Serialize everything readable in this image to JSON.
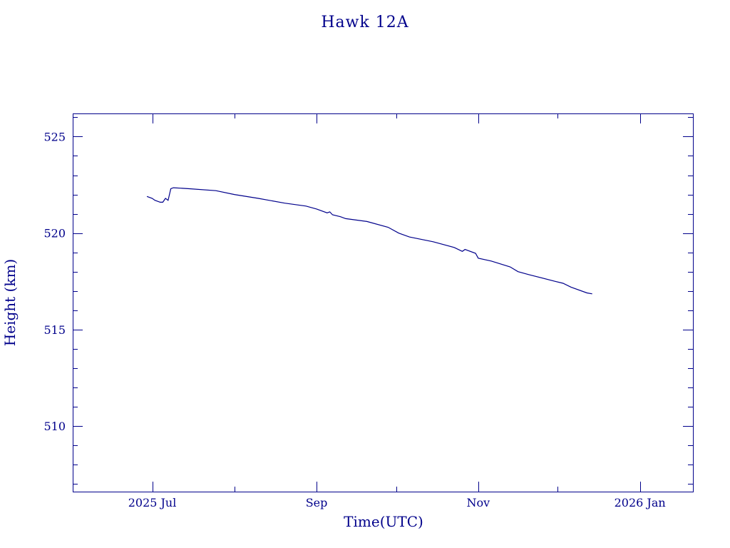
{
  "chart_data": {
    "type": "line",
    "title": "Hawk 12A",
    "xlabel": "Time(UTC)",
    "ylabel": "Height (km)",
    "x_ticks": [
      {
        "x": "2025-07-01",
        "label": "2025 Jul"
      },
      {
        "x": "2025-09-01",
        "label": "Sep"
      },
      {
        "x": "2025-11-01",
        "label": "Nov"
      },
      {
        "x": "2026-01-01",
        "label": "2026 Jan"
      }
    ],
    "y_ticks": [
      {
        "y": 510,
        "label": "510"
      },
      {
        "y": 515,
        "label": "515"
      },
      {
        "y": 520,
        "label": "520"
      },
      {
        "y": 525,
        "label": "525"
      }
    ],
    "xlim": [
      "2025-06-01",
      "2026-01-21"
    ],
    "ylim": [
      506.6,
      526.2
    ],
    "grid": false,
    "series": [
      {
        "color": "#00008b",
        "points": [
          {
            "x": "2025-06-29",
            "y": 521.9
          },
          {
            "x": "2025-07-01",
            "y": 521.8
          },
          {
            "x": "2025-07-02",
            "y": 521.7
          },
          {
            "x": "2025-07-04",
            "y": 521.6
          },
          {
            "x": "2025-07-05",
            "y": 521.6
          },
          {
            "x": "2025-07-06",
            "y": 521.8
          },
          {
            "x": "2025-07-07",
            "y": 521.7
          },
          {
            "x": "2025-07-08",
            "y": 522.3
          },
          {
            "x": "2025-07-09",
            "y": 522.35
          },
          {
            "x": "2025-07-15",
            "y": 522.3
          },
          {
            "x": "2025-07-25",
            "y": 522.2
          },
          {
            "x": "2025-08-01",
            "y": 522.0
          },
          {
            "x": "2025-08-10",
            "y": 521.8
          },
          {
            "x": "2025-08-20",
            "y": 521.55
          },
          {
            "x": "2025-08-28",
            "y": 521.4
          },
          {
            "x": "2025-09-01",
            "y": 521.25
          },
          {
            "x": "2025-09-05",
            "y": 521.05
          },
          {
            "x": "2025-09-06",
            "y": 521.1
          },
          {
            "x": "2025-09-07",
            "y": 520.95
          },
          {
            "x": "2025-09-10",
            "y": 520.85
          },
          {
            "x": "2025-09-12",
            "y": 520.75
          },
          {
            "x": "2025-09-20",
            "y": 520.6
          },
          {
            "x": "2025-09-28",
            "y": 520.3
          },
          {
            "x": "2025-10-02",
            "y": 520.0
          },
          {
            "x": "2025-10-06",
            "y": 519.8
          },
          {
            "x": "2025-10-15",
            "y": 519.55
          },
          {
            "x": "2025-10-23",
            "y": 519.25
          },
          {
            "x": "2025-10-26",
            "y": 519.05
          },
          {
            "x": "2025-10-27",
            "y": 519.15
          },
          {
            "x": "2025-10-31",
            "y": 518.95
          },
          {
            "x": "2025-11-01",
            "y": 518.7
          },
          {
            "x": "2025-11-06",
            "y": 518.55
          },
          {
            "x": "2025-11-13",
            "y": 518.25
          },
          {
            "x": "2025-11-16",
            "y": 518.0
          },
          {
            "x": "2025-11-20",
            "y": 517.85
          },
          {
            "x": "2025-11-30",
            "y": 517.5
          },
          {
            "x": "2025-12-03",
            "y": 517.4
          },
          {
            "x": "2025-12-06",
            "y": 517.2
          },
          {
            "x": "2025-12-12",
            "y": 516.9
          },
          {
            "x": "2025-12-14",
            "y": 516.85
          }
        ]
      }
    ]
  }
}
